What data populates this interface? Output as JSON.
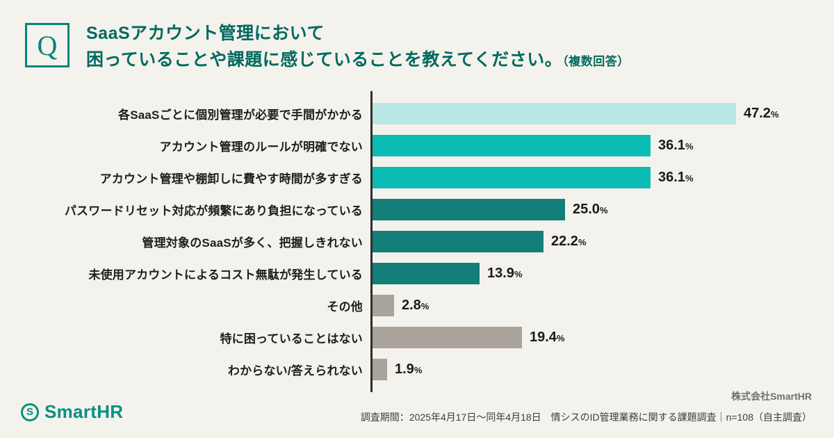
{
  "header": {
    "q_label": "Q",
    "title_line1": "SaaSアカウント管理において",
    "title_line2": "困っていることや課題に感じていることを教えてください。",
    "title_note": "（複数回答）"
  },
  "chart_data": {
    "type": "bar",
    "orientation": "horizontal",
    "unit": "%",
    "max_value": 47.2,
    "categories": [
      "各SaaSごとに個別管理が必要で手間がかかる",
      "アカウント管理のルールが明確でない",
      "アカウント管理や棚卸しに費やす時間が多すぎる",
      "パスワードリセット対応が頻繁にあり負担になっている",
      "管理対象のSaaSが多く、把握しきれない",
      "未使用アカウントによるコスト無駄が発生している",
      "その他",
      "特に困っていることはない",
      "わからない/答えられない"
    ],
    "values": [
      47.2,
      36.1,
      36.1,
      25.0,
      22.2,
      13.9,
      2.8,
      19.4,
      1.9
    ],
    "value_labels": [
      "47.2",
      "36.1",
      "36.1",
      "25.0",
      "22.2",
      "13.9",
      "2.8",
      "19.4",
      "1.9"
    ],
    "bar_colors": [
      "#b9e8e4",
      "#0abcb3",
      "#0abcb3",
      "#137e7a",
      "#137e7a",
      "#137e7a",
      "#a9a39a",
      "#a9a39a",
      "#a9a39a"
    ],
    "legend": "none",
    "grid": "off"
  },
  "footer": {
    "logo_mark": "S",
    "logo_text": "SmartHR",
    "company": "株式会社SmartHR",
    "survey_note": "調査期間：2025年4月17日〜同年4月18日　情シスのID管理業務に関する課題調査｜n=108（自主調査）"
  },
  "colors": {
    "brand_teal": "#00857a",
    "background": "#f4f2ec",
    "axis": "#2e2e2e"
  }
}
